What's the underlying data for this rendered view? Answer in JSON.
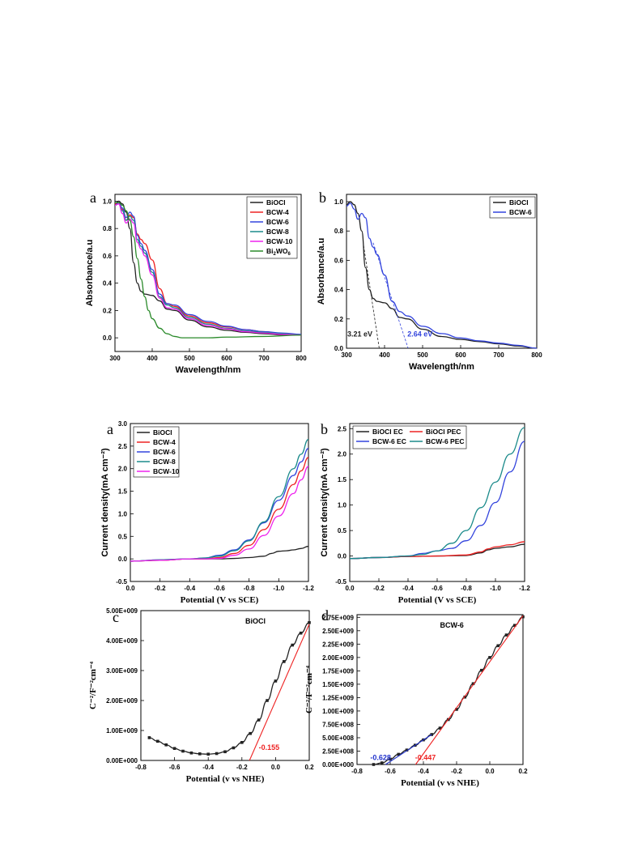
{
  "chart_data": [
    {
      "panel": "a",
      "type": "line",
      "xlabel": "Wavelength/nm",
      "ylabel": "Absorbance/a.u",
      "xlim": [
        300,
        800
      ],
      "ylim": [
        -0.1,
        1.05
      ],
      "xticks": [
        300,
        400,
        500,
        600,
        700,
        800
      ],
      "yticks": [
        0.0,
        0.2,
        0.4,
        0.6,
        0.8,
        1.0
      ],
      "xtick_labels": [
        "300",
        "400",
        "500",
        "600",
        "700",
        "800"
      ],
      "ytick_labels": [
        "0.0",
        "0.2",
        "0.4",
        "0.6",
        "0.8",
        "1.0"
      ],
      "legend": "top-right",
      "series": [
        {
          "name": "BiOCl",
          "color": "#222222",
          "x": [
            300,
            310,
            320,
            330,
            340,
            350,
            360,
            370,
            380,
            400,
            420,
            440,
            460,
            500,
            550,
            600,
            650,
            700,
            750,
            800
          ],
          "y": [
            0.98,
            1.0,
            0.98,
            0.92,
            0.8,
            0.55,
            0.4,
            0.34,
            0.32,
            0.31,
            0.27,
            0.21,
            0.2,
            0.13,
            0.08,
            0.055,
            0.04,
            0.03,
            0.02,
            0.02
          ]
        },
        {
          "name": "BCW-4",
          "color": "#ee2222",
          "x": [
            300,
            310,
            320,
            330,
            340,
            350,
            360,
            370,
            380,
            400,
            420,
            440,
            460,
            500,
            550,
            600,
            650,
            700,
            750,
            800
          ],
          "y": [
            0.98,
            0.99,
            0.94,
            0.86,
            0.9,
            0.88,
            0.76,
            0.72,
            0.69,
            0.57,
            0.36,
            0.25,
            0.23,
            0.16,
            0.11,
            0.08,
            0.06,
            0.045,
            0.03,
            0.02
          ]
        },
        {
          "name": "BCW-6",
          "color": "#3344dd",
          "x": [
            300,
            310,
            320,
            330,
            340,
            350,
            360,
            370,
            380,
            400,
            420,
            440,
            460,
            500,
            550,
            600,
            650,
            700,
            750,
            800
          ],
          "y": [
            0.97,
            0.99,
            0.95,
            0.88,
            0.92,
            0.89,
            0.75,
            0.69,
            0.64,
            0.5,
            0.32,
            0.25,
            0.24,
            0.17,
            0.12,
            0.085,
            0.06,
            0.045,
            0.035,
            0.025
          ]
        },
        {
          "name": "BCW-8",
          "color": "#1a8a8a",
          "x": [
            300,
            310,
            320,
            330,
            340,
            350,
            360,
            370,
            380,
            400,
            420,
            440,
            460,
            500,
            550,
            600,
            650,
            700,
            750,
            800
          ],
          "y": [
            0.97,
            0.98,
            0.93,
            0.86,
            0.89,
            0.86,
            0.72,
            0.67,
            0.62,
            0.48,
            0.3,
            0.24,
            0.22,
            0.15,
            0.1,
            0.07,
            0.05,
            0.04,
            0.03,
            0.02
          ]
        },
        {
          "name": "BCW-10",
          "color": "#ee22ee",
          "x": [
            300,
            310,
            320,
            330,
            340,
            350,
            360,
            370,
            380,
            400,
            420,
            440,
            460,
            500,
            550,
            600,
            650,
            700,
            750,
            800
          ],
          "y": [
            0.97,
            0.98,
            0.91,
            0.84,
            0.87,
            0.84,
            0.7,
            0.65,
            0.6,
            0.46,
            0.29,
            0.22,
            0.21,
            0.14,
            0.09,
            0.065,
            0.045,
            0.035,
            0.025,
            0.02
          ]
        },
        {
          "name": "Bi2WO6",
          "color": "#2a8a2a",
          "x": [
            300,
            310,
            320,
            330,
            340,
            350,
            360,
            370,
            380,
            390,
            400,
            420,
            440,
            460,
            480,
            500,
            550,
            600,
            700,
            800
          ],
          "y": [
            0.99,
            0.99,
            0.97,
            0.93,
            0.86,
            0.74,
            0.58,
            0.43,
            0.3,
            0.2,
            0.14,
            0.07,
            0.03,
            0.01,
            0.0,
            0.0,
            0.0,
            0.005,
            0.01,
            0.02
          ]
        }
      ]
    },
    {
      "panel": "b",
      "type": "line",
      "xlabel": "Wavelength/nm",
      "ylabel": "Absorbance/a.u",
      "xlim": [
        300,
        800
      ],
      "ylim": [
        0.0,
        1.05
      ],
      "xticks": [
        300,
        400,
        500,
        600,
        700,
        800
      ],
      "yticks": [
        0.0,
        0.2,
        0.4,
        0.6,
        0.8,
        1.0
      ],
      "xtick_labels": [
        "300",
        "400",
        "500",
        "600",
        "700",
        "800"
      ],
      "ytick_labels": [
        "0.0",
        "0.2",
        "0.4",
        "0.6",
        "0.8",
        "1.0"
      ],
      "legend": "top-right",
      "series": [
        {
          "name": "BiOCl",
          "color": "#222222",
          "x": [
            300,
            310,
            320,
            330,
            340,
            350,
            360,
            370,
            380,
            400,
            420,
            440,
            460,
            500,
            550,
            600,
            650,
            700,
            750,
            800
          ],
          "y": [
            0.98,
            1.0,
            0.98,
            0.92,
            0.8,
            0.55,
            0.4,
            0.34,
            0.32,
            0.31,
            0.27,
            0.21,
            0.2,
            0.13,
            0.08,
            0.06,
            0.045,
            0.03,
            0.015,
            0.0
          ]
        },
        {
          "name": "BCW-6",
          "color": "#3344dd",
          "x": [
            300,
            310,
            320,
            330,
            340,
            350,
            360,
            370,
            380,
            400,
            420,
            440,
            460,
            500,
            550,
            600,
            650,
            700,
            750,
            800
          ],
          "y": [
            0.97,
            0.99,
            0.95,
            0.88,
            0.92,
            0.89,
            0.75,
            0.69,
            0.64,
            0.5,
            0.32,
            0.25,
            0.22,
            0.15,
            0.1,
            0.07,
            0.05,
            0.035,
            0.02,
            0.0
          ]
        }
      ],
      "annotations": [
        "3.21 eV",
        "2.64 eV"
      ]
    },
    {
      "panel": "a",
      "type": "line",
      "xlabel": "Potential (V vs SCE)",
      "ylabel": "Current density(mA cm⁻²)",
      "xlim": [
        0.0,
        -1.2
      ],
      "ylim": [
        -0.5,
        3.0
      ],
      "xticks": [
        0.0,
        -0.2,
        -0.4,
        -0.6,
        -0.8,
        -1.0,
        -1.2
      ],
      "yticks": [
        -0.5,
        0.0,
        0.5,
        1.0,
        1.5,
        2.0,
        2.5,
        3.0
      ],
      "xtick_labels": [
        "0.0",
        "-0.2",
        "-0.4",
        "-0.6",
        "-0.8",
        "-1.0",
        "-1.2"
      ],
      "ytick_labels": [
        "-0.5",
        "0.0",
        "0.5",
        "1.0",
        "1.5",
        "2.0",
        "2.5",
        "3.0"
      ],
      "legend": "top-left",
      "series": [
        {
          "name": "BiOCl",
          "color": "#222222",
          "x": [
            0,
            -0.2,
            -0.4,
            -0.6,
            -0.7,
            -0.8,
            -0.9,
            -0.95,
            -1.0,
            -1.05,
            -1.1,
            -1.15,
            -1.2
          ],
          "y": [
            -0.05,
            -0.03,
            0.0,
            0.0,
            0.01,
            0.03,
            0.06,
            0.12,
            0.17,
            0.18,
            0.2,
            0.23,
            0.28
          ]
        },
        {
          "name": "BCW-4",
          "color": "#ee2222",
          "x": [
            0,
            -0.2,
            -0.4,
            -0.5,
            -0.6,
            -0.7,
            -0.8,
            -0.9,
            -1.0,
            -1.1,
            -1.15,
            -1.2
          ],
          "y": [
            -0.05,
            -0.03,
            0.0,
            0.0,
            0.03,
            0.12,
            0.3,
            0.65,
            1.1,
            1.65,
            1.95,
            2.25
          ]
        },
        {
          "name": "BCW-6",
          "color": "#3344dd",
          "x": [
            0,
            -0.2,
            -0.4,
            -0.5,
            -0.6,
            -0.7,
            -0.8,
            -0.9,
            -1.0,
            -1.1,
            -1.15,
            -1.2
          ],
          "y": [
            -0.05,
            -0.02,
            0.0,
            0.02,
            0.08,
            0.2,
            0.42,
            0.8,
            1.3,
            1.85,
            2.15,
            2.45
          ]
        },
        {
          "name": "BCW-8",
          "color": "#1a8a8a",
          "x": [
            0,
            -0.2,
            -0.4,
            -0.5,
            -0.6,
            -0.7,
            -0.8,
            -0.9,
            -1.0,
            -1.1,
            -1.15,
            -1.2
          ],
          "y": [
            -0.05,
            -0.02,
            0.0,
            0.02,
            0.06,
            0.18,
            0.4,
            0.82,
            1.38,
            2.0,
            2.32,
            2.65
          ]
        },
        {
          "name": "BCW-10",
          "color": "#ee22ee",
          "x": [
            0,
            -0.2,
            -0.4,
            -0.5,
            -0.6,
            -0.7,
            -0.8,
            -0.9,
            -1.0,
            -1.1,
            -1.15,
            -1.2
          ],
          "y": [
            -0.05,
            -0.03,
            0.0,
            0.0,
            0.01,
            0.08,
            0.22,
            0.52,
            0.95,
            1.45,
            1.75,
            2.05
          ]
        }
      ]
    },
    {
      "panel": "b",
      "type": "line",
      "xlabel": "Potential (V vs SCE)",
      "ylabel": "Current density(mA cm⁻²)",
      "xlim": [
        0.0,
        -1.2
      ],
      "ylim": [
        -0.5,
        2.6
      ],
      "xticks": [
        0.0,
        -0.2,
        -0.4,
        -0.6,
        -0.8,
        -1.0,
        -1.2
      ],
      "yticks": [
        -0.5,
        0.0,
        0.5,
        1.0,
        1.5,
        2.0,
        2.5
      ],
      "xtick_labels": [
        "0.0",
        "-0.2",
        "-0.4",
        "-0.6",
        "-0.8",
        "-1.0",
        "-1.2"
      ],
      "ytick_labels": [
        "-0.5",
        "0.0",
        "0.5",
        "1.0",
        "1.5",
        "2.0",
        "2.5"
      ],
      "legend": "top",
      "series": [
        {
          "name": "BiOCl EC",
          "color": "#222222",
          "x": [
            0,
            -0.2,
            -0.4,
            -0.6,
            -0.8,
            -0.9,
            -0.95,
            -1.0,
            -1.1,
            -1.2
          ],
          "y": [
            -0.05,
            -0.03,
            -0.01,
            0.0,
            0.01,
            0.06,
            0.12,
            0.15,
            0.18,
            0.23
          ]
        },
        {
          "name": "BiOCl PEC",
          "color": "#ee2222",
          "x": [
            0,
            -0.2,
            -0.4,
            -0.6,
            -0.8,
            -0.9,
            -0.95,
            -1.0,
            -1.1,
            -1.2
          ],
          "y": [
            -0.05,
            -0.03,
            -0.01,
            0.0,
            0.02,
            0.08,
            0.14,
            0.18,
            0.22,
            0.28
          ]
        },
        {
          "name": "BCW-6 EC",
          "color": "#3344dd",
          "x": [
            0,
            -0.2,
            -0.4,
            -0.5,
            -0.6,
            -0.7,
            -0.8,
            -0.9,
            -1.0,
            -1.1,
            -1.2
          ],
          "y": [
            -0.05,
            -0.03,
            0.0,
            0.05,
            0.1,
            0.15,
            0.3,
            0.6,
            1.05,
            1.65,
            2.25
          ]
        },
        {
          "name": "BCW-6 PEC",
          "color": "#1a8a8a",
          "x": [
            0,
            -0.2,
            -0.4,
            -0.5,
            -0.6,
            -0.7,
            -0.8,
            -0.9,
            -1.0,
            -1.1,
            -1.2
          ],
          "y": [
            -0.05,
            -0.03,
            0.0,
            0.03,
            0.1,
            0.25,
            0.5,
            0.95,
            1.45,
            2.0,
            2.52
          ]
        }
      ]
    },
    {
      "panel": "c",
      "type": "scatter",
      "xlabel": "Potential (v vs NHE)",
      "ylabel": "C⁻²/F⁻²cm⁻⁴",
      "xlim": [
        -0.8,
        0.2
      ],
      "ylim": [
        0,
        5000000000
      ],
      "xticks": [
        -0.8,
        -0.6,
        -0.4,
        -0.2,
        0.0,
        0.2
      ],
      "yticks": [
        0,
        1000000000,
        2000000000,
        3000000000,
        4000000000,
        5000000000
      ],
      "xtick_labels": [
        "-0.8",
        "-0.6",
        "-0.4",
        "-0.2",
        "0.0",
        "0.2"
      ],
      "ytick_labels": [
        "0.00E+000",
        "1.00E+009",
        "2.00E+009",
        "3.00E+009",
        "4.00E+009",
        "5.00E+009"
      ],
      "inset_label": "BiOCl",
      "series": [
        {
          "name": "",
          "color": "#222222",
          "x": [
            -0.75,
            -0.7,
            -0.65,
            -0.6,
            -0.55,
            -0.5,
            -0.45,
            -0.4,
            -0.35,
            -0.3,
            -0.25,
            -0.2,
            -0.15,
            -0.1,
            -0.05,
            0.0,
            0.05,
            0.1,
            0.15,
            0.2
          ],
          "y": [
            760000000,
            640000000,
            520000000,
            400000000,
            310000000,
            250000000,
            220000000,
            210000000,
            230000000,
            290000000,
            420000000,
            600000000,
            900000000,
            1350000000,
            2000000000,
            2650000000,
            3300000000,
            3850000000,
            4250000000,
            4600000000
          ]
        }
      ],
      "fits": [
        {
          "color": "#ee2222",
          "x": [
            -0.155,
            0.2
          ],
          "y": [
            0,
            4550000000
          ]
        }
      ],
      "annotations": [
        "-0.155"
      ]
    },
    {
      "panel": "d",
      "type": "scatter",
      "xlabel": "Potential (v vs NHE)",
      "ylabel": "C⁻²/F⁻²cm⁻⁴",
      "xlim": [
        -0.8,
        0.2
      ],
      "ylim": [
        0,
        2800000000
      ],
      "xticks": [
        -0.8,
        -0.6,
        -0.4,
        -0.2,
        0.0,
        0.2
      ],
      "yticks": [
        0,
        250000000,
        500000000,
        750000000,
        1000000000,
        1250000000,
        1500000000,
        1750000000,
        2000000000,
        2250000000,
        2500000000,
        2750000000
      ],
      "xtick_labels": [
        "-0.8",
        "-0.6",
        "-0.4",
        "-0.2",
        "0.0",
        "0.2"
      ],
      "ytick_labels": [
        "0.00E+000",
        "2.50E+008",
        "5.00E+008",
        "7.50E+008",
        "1.00E+009",
        "1.25E+009",
        "1.50E+009",
        "1.75E+009",
        "2.00E+009",
        "2.25E+009",
        "2.50E+009",
        "2.75E+009"
      ],
      "inset_label": "BCW-6",
      "series": [
        {
          "name": "",
          "color": "#222222",
          "x": [
            -0.7,
            -0.65,
            -0.6,
            -0.55,
            -0.5,
            -0.45,
            -0.4,
            -0.35,
            -0.3,
            -0.25,
            -0.2,
            -0.15,
            -0.1,
            -0.05,
            0.0,
            0.05,
            0.1,
            0.15,
            0.2
          ],
          "y": [
            0,
            30000000,
            100000000,
            190000000,
            270000000,
            360000000,
            460000000,
            560000000,
            680000000,
            840000000,
            1030000000,
            1260000000,
            1510000000,
            1760000000,
            2000000000,
            2220000000,
            2420000000,
            2600000000,
            2760000000
          ]
        }
      ],
      "fits": [
        {
          "color": "#ee2222",
          "x": [
            -0.447,
            0.2
          ],
          "y": [
            0,
            2780000000
          ]
        },
        {
          "color": "#2233cc",
          "x": [
            -0.628,
            -0.35
          ],
          "y": [
            0,
            560000000
          ]
        }
      ],
      "annotations": [
        "-0.628",
        "-0.447"
      ]
    }
  ],
  "panel_letters": [
    "a",
    "b",
    "a",
    "b",
    "c",
    "d"
  ],
  "legend_entries": {
    "top_a": [
      "BiOCl",
      "BCW-4",
      "BCW-6",
      "BCW-8",
      "BCW-10",
      "Bi2WO6"
    ],
    "top_b": [
      "BiOCl",
      "BCW-6"
    ],
    "mid_a": [
      "BiOCl",
      "BCW-4",
      "BCW-6",
      "BCW-8",
      "BCW-10"
    ],
    "mid_b": [
      "BiOCl EC",
      "BiOCl PEC",
      "BCW-6 EC",
      "BCW-6 PEC"
    ]
  }
}
